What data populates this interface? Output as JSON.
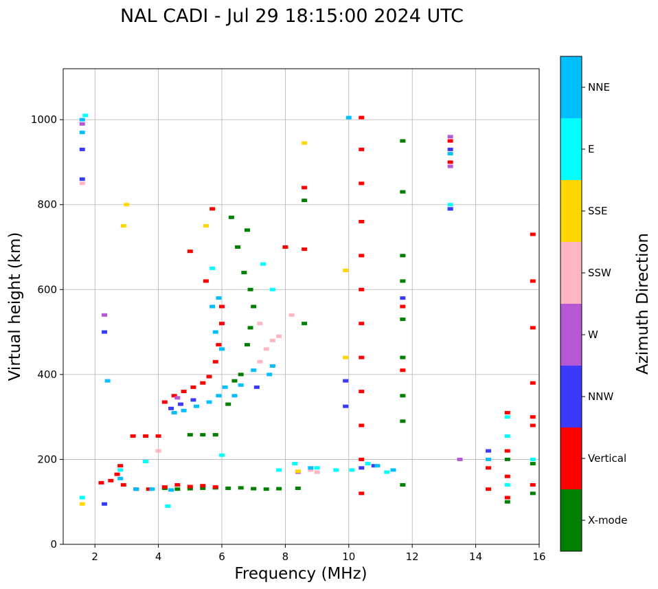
{
  "chart_data": {
    "type": "scatter",
    "title": "NAL CADI - Jul 29 18:15:00 2024 UTC",
    "xlabel": "Frequency (MHz)",
    "ylabel": "Virtual height (km)",
    "xlim": [
      1,
      16
    ],
    "ylim": [
      0,
      1120
    ],
    "xticks": [
      2,
      4,
      6,
      8,
      10,
      12,
      14,
      16
    ],
    "yticks": [
      0,
      200,
      400,
      600,
      800,
      1000
    ],
    "xtick_labels": [
      "2",
      "4",
      "6",
      "8",
      "10",
      "12",
      "14",
      "16"
    ],
    "ytick_labels": [
      "0",
      "200",
      "400",
      "600",
      "800",
      "1000"
    ],
    "grid": true,
    "colorbar": {
      "label": "Azimuth Direction",
      "categories": [
        {
          "name": "X-mode",
          "color": "#008000"
        },
        {
          "name": "Vertical",
          "color": "#ff0000"
        },
        {
          "name": "NNW",
          "color": "#3a3aff"
        },
        {
          "name": "W",
          "color": "#b657d6"
        },
        {
          "name": "SSW",
          "color": "#ffb6c1"
        },
        {
          "name": "SSE",
          "color": "#ffd700"
        },
        {
          "name": "E",
          "color": "#00ffff"
        },
        {
          "name": "NNE",
          "color": "#00bfff"
        }
      ]
    },
    "series": [
      {
        "name": "X-mode",
        "points": [
          [
            4.2,
            132
          ],
          [
            4.6,
            130
          ],
          [
            5.0,
            131
          ],
          [
            5.4,
            132
          ],
          [
            5.8,
            133
          ],
          [
            6.2,
            132
          ],
          [
            6.6,
            133
          ],
          [
            7.0,
            131
          ],
          [
            7.4,
            130
          ],
          [
            7.8,
            131
          ],
          [
            8.4,
            132
          ],
          [
            5.0,
            258
          ],
          [
            5.4,
            258
          ],
          [
            5.8,
            258
          ],
          [
            6.2,
            330
          ],
          [
            6.4,
            385
          ],
          [
            6.6,
            400
          ],
          [
            6.8,
            470
          ],
          [
            6.9,
            510
          ],
          [
            7.0,
            560
          ],
          [
            6.9,
            600
          ],
          [
            6.7,
            640
          ],
          [
            6.5,
            700
          ],
          [
            6.3,
            770
          ],
          [
            6.8,
            740
          ],
          [
            8.6,
            520
          ],
          [
            8.6,
            810
          ],
          [
            11.7,
            950
          ],
          [
            11.7,
            830
          ],
          [
            11.7,
            680
          ],
          [
            11.7,
            620
          ],
          [
            11.7,
            530
          ],
          [
            11.7,
            440
          ],
          [
            11.7,
            350
          ],
          [
            11.7,
            290
          ],
          [
            11.7,
            140
          ],
          [
            15.0,
            100
          ],
          [
            15.0,
            200
          ],
          [
            15.8,
            120
          ],
          [
            15.8,
            190
          ],
          [
            13.2,
            790
          ]
        ]
      },
      {
        "name": "Vertical",
        "points": [
          [
            2.2,
            145
          ],
          [
            2.5,
            150
          ],
          [
            2.7,
            165
          ],
          [
            2.8,
            185
          ],
          [
            2.9,
            140
          ],
          [
            3.3,
            130
          ],
          [
            3.7,
            130
          ],
          [
            4.2,
            135
          ],
          [
            4.6,
            140
          ],
          [
            5.0,
            136
          ],
          [
            5.4,
            138
          ],
          [
            5.8,
            135
          ],
          [
            3.2,
            255
          ],
          [
            3.6,
            255
          ],
          [
            4.0,
            255
          ],
          [
            4.2,
            335
          ],
          [
            4.5,
            350
          ],
          [
            4.8,
            360
          ],
          [
            5.1,
            370
          ],
          [
            5.4,
            380
          ],
          [
            5.6,
            395
          ],
          [
            5.8,
            430
          ],
          [
            5.9,
            470
          ],
          [
            6.0,
            520
          ],
          [
            6.0,
            560
          ],
          [
            5.5,
            620
          ],
          [
            5.0,
            690
          ],
          [
            5.7,
            790
          ],
          [
            8.6,
            840
          ],
          [
            8.6,
            695
          ],
          [
            10.4,
            1005
          ],
          [
            10.4,
            930
          ],
          [
            10.4,
            850
          ],
          [
            10.4,
            760
          ],
          [
            10.4,
            680
          ],
          [
            10.4,
            600
          ],
          [
            10.4,
            520
          ],
          [
            10.4,
            440
          ],
          [
            10.4,
            360
          ],
          [
            10.4,
            280
          ],
          [
            10.4,
            200
          ],
          [
            10.4,
            120
          ],
          [
            13.2,
            950
          ],
          [
            13.2,
            900
          ],
          [
            14.4,
            130
          ],
          [
            14.4,
            180
          ],
          [
            15.0,
            110
          ],
          [
            15.0,
            160
          ],
          [
            15.0,
            220
          ],
          [
            15.0,
            310
          ],
          [
            15.8,
            140
          ],
          [
            15.8,
            280
          ],
          [
            15.8,
            300
          ],
          [
            15.8,
            380
          ],
          [
            15.8,
            510
          ],
          [
            15.8,
            620
          ],
          [
            15.8,
            730
          ],
          [
            11.7,
            560
          ],
          [
            11.7,
            410
          ],
          [
            8.0,
            700
          ]
        ]
      },
      {
        "name": "NNW",
        "points": [
          [
            1.6,
            860
          ],
          [
            1.6,
            930
          ],
          [
            2.3,
            500
          ],
          [
            2.3,
            95
          ],
          [
            4.4,
            320
          ],
          [
            4.7,
            330
          ],
          [
            5.1,
            340
          ],
          [
            7.1,
            370
          ],
          [
            9.9,
            385
          ],
          [
            9.9,
            325
          ],
          [
            10.4,
            180
          ],
          [
            10.8,
            185
          ],
          [
            13.2,
            930
          ],
          [
            14.4,
            220
          ],
          [
            13.2,
            790
          ],
          [
            11.7,
            580
          ]
        ]
      },
      {
        "name": "W",
        "points": [
          [
            1.6,
            990
          ],
          [
            2.3,
            540
          ],
          [
            4.6,
            345
          ],
          [
            13.2,
            890
          ],
          [
            13.2,
            960
          ],
          [
            13.5,
            200
          ],
          [
            8.4,
            170
          ]
        ]
      },
      {
        "name": "SSW",
        "points": [
          [
            1.6,
            850
          ],
          [
            7.2,
            430
          ],
          [
            7.4,
            460
          ],
          [
            7.6,
            480
          ],
          [
            7.8,
            490
          ],
          [
            8.8,
            175
          ],
          [
            9.0,
            170
          ],
          [
            8.2,
            540
          ],
          [
            4.0,
            220
          ],
          [
            7.2,
            520
          ]
        ]
      },
      {
        "name": "SSE",
        "points": [
          [
            1.6,
            95
          ],
          [
            2.9,
            750
          ],
          [
            3.0,
            800
          ],
          [
            5.5,
            750
          ],
          [
            8.6,
            945
          ],
          [
            9.9,
            645
          ],
          [
            9.9,
            440
          ],
          [
            8.4,
            172
          ]
        ]
      },
      {
        "name": "E",
        "points": [
          [
            1.6,
            110
          ],
          [
            2.8,
            175
          ],
          [
            3.6,
            195
          ],
          [
            4.3,
            90
          ],
          [
            5.7,
            650
          ],
          [
            6.0,
            210
          ],
          [
            7.3,
            660
          ],
          [
            7.6,
            600
          ],
          [
            7.8,
            175
          ],
          [
            8.3,
            190
          ],
          [
            9.0,
            180
          ],
          [
            9.6,
            175
          ],
          [
            10.1,
            175
          ],
          [
            10.6,
            190
          ],
          [
            11.2,
            170
          ],
          [
            13.2,
            800
          ],
          [
            15.0,
            140
          ],
          [
            15.0,
            255
          ],
          [
            15.0,
            300
          ],
          [
            15.8,
            200
          ],
          [
            1.7,
            1010
          ]
        ]
      },
      {
        "name": "NNE",
        "points": [
          [
            1.6,
            1000
          ],
          [
            1.6,
            970
          ],
          [
            2.4,
            385
          ],
          [
            2.8,
            155
          ],
          [
            3.3,
            130
          ],
          [
            3.8,
            130
          ],
          [
            4.4,
            128
          ],
          [
            4.5,
            310
          ],
          [
            4.8,
            315
          ],
          [
            5.2,
            325
          ],
          [
            5.6,
            335
          ],
          [
            5.9,
            350
          ],
          [
            6.1,
            370
          ],
          [
            6.4,
            350
          ],
          [
            6.6,
            375
          ],
          [
            7.0,
            410
          ],
          [
            7.5,
            400
          ],
          [
            7.6,
            420
          ],
          [
            6.0,
            460
          ],
          [
            5.8,
            500
          ],
          [
            5.7,
            560
          ],
          [
            5.9,
            580
          ],
          [
            10.0,
            1005
          ],
          [
            13.2,
            920
          ],
          [
            14.4,
            200
          ],
          [
            8.8,
            180
          ],
          [
            10.9,
            185
          ],
          [
            11.4,
            175
          ]
        ]
      }
    ]
  }
}
